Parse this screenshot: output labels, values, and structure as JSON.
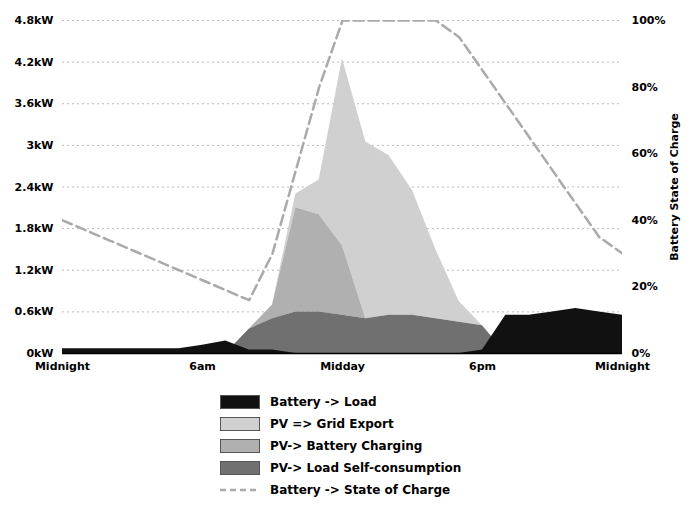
{
  "chart_data": {
    "type": "area",
    "x": [
      0,
      1,
      2,
      3,
      4,
      5,
      6,
      7,
      8,
      9,
      10,
      11,
      12,
      13,
      14,
      15,
      16,
      17,
      18,
      19,
      20,
      21,
      22,
      23,
      24
    ],
    "xlim": [
      0,
      24
    ],
    "xticks": [
      {
        "value": 0,
        "label": "Midnight"
      },
      {
        "value": 6,
        "label": "6am"
      },
      {
        "value": 12,
        "label": "Midday"
      },
      {
        "value": 18,
        "label": "6pm"
      },
      {
        "value": 24,
        "label": "Midnight"
      }
    ],
    "ylim": [
      0,
      4.8
    ],
    "yticks": [
      {
        "value": 0,
        "label": "0kW"
      },
      {
        "value": 0.6,
        "label": "0.6kW"
      },
      {
        "value": 1.2,
        "label": "1.2kW"
      },
      {
        "value": 1.8,
        "label": "1.8kW"
      },
      {
        "value": 2.4,
        "label": "2.4kW"
      },
      {
        "value": 3.0,
        "label": "3kW"
      },
      {
        "value": 3.6,
        "label": "3.6kW"
      },
      {
        "value": 4.2,
        "label": "4.2kW"
      },
      {
        "value": 4.8,
        "label": "4.8kW"
      }
    ],
    "y2lim": [
      0,
      100
    ],
    "y2ticks": [
      {
        "value": 0,
        "label": "0%"
      },
      {
        "value": 20,
        "label": "20%"
      },
      {
        "value": 40,
        "label": "40%"
      },
      {
        "value": 60,
        "label": "60%"
      },
      {
        "value": 80,
        "label": "80%"
      },
      {
        "value": 100,
        "label": "100%"
      }
    ],
    "y2label": "Battery State of Charge",
    "grid": true,
    "legend": "bottom",
    "series": [
      {
        "name": "Battery -> Load",
        "type": "area",
        "color": "#111111",
        "values": [
          0.07,
          0.07,
          0.07,
          0.07,
          0.07,
          0.07,
          0.12,
          0.18,
          0.05,
          0.05,
          0.0,
          0.0,
          0.0,
          0.0,
          0.0,
          0.0,
          0.0,
          0.0,
          0.05,
          0.55,
          0.55,
          0.6,
          0.65,
          0.6,
          0.55
        ]
      },
      {
        "name": "PV => Grid Export",
        "type": "stacked_area",
        "color": "#d0d0d0",
        "values": [
          0,
          0,
          0,
          0,
          0,
          0,
          0,
          0,
          0,
          0,
          0.2,
          0.5,
          2.7,
          2.55,
          2.3,
          1.8,
          1.0,
          0.3,
          0.0,
          0.0,
          0.0,
          0.0,
          0.0,
          0.0,
          0.0
        ]
      },
      {
        "name": "PV-> Battery Charging",
        "type": "stacked_area",
        "color": "#b0b0b0",
        "values": [
          0,
          0,
          0,
          0,
          0,
          0,
          0,
          0,
          0,
          0.2,
          1.5,
          1.4,
          1.0,
          0,
          0,
          0,
          0,
          0,
          0,
          0,
          0,
          0,
          0,
          0,
          0
        ]
      },
      {
        "name": "PV-> Load Self-consumption",
        "type": "stacked_area",
        "color": "#707070",
        "values": [
          0,
          0,
          0,
          0,
          0,
          0,
          0,
          0,
          0.35,
          0.5,
          0.6,
          0.6,
          0.55,
          0.5,
          0.55,
          0.55,
          0.5,
          0.45,
          0.4,
          0,
          0,
          0,
          0,
          0,
          0
        ]
      },
      {
        "name": "Battery -> State of Charge",
        "type": "line",
        "axis": "y2",
        "line_style": "dashed",
        "color": "#aaaaaa",
        "values": [
          40,
          37,
          34,
          31,
          28,
          25,
          22,
          19,
          16,
          30,
          55,
          80,
          100,
          100,
          100,
          100,
          100,
          95,
          85,
          75,
          65,
          55,
          45,
          35,
          30
        ]
      }
    ]
  }
}
